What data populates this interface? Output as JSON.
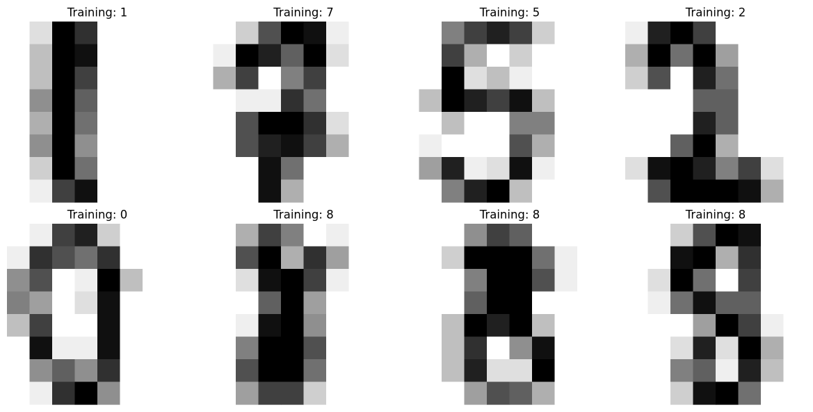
{
  "chart_data": [
    {
      "type": "heatmap",
      "title": "Training: 1",
      "colormap": "gray_r",
      "vmin": 0,
      "vmax": 16,
      "grid": false,
      "axes": "off",
      "values": [
        [
          0,
          2,
          16,
          13,
          0,
          0,
          0,
          0
        ],
        [
          0,
          4,
          16,
          15,
          0,
          0,
          0,
          0
        ],
        [
          0,
          4,
          16,
          12,
          0,
          0,
          0,
          0
        ],
        [
          0,
          7,
          16,
          10,
          0,
          0,
          0,
          0
        ],
        [
          0,
          5,
          16,
          9,
          0,
          0,
          0,
          0
        ],
        [
          0,
          7,
          16,
          7,
          0,
          0,
          0,
          0
        ],
        [
          0,
          3,
          16,
          9,
          0,
          0,
          0,
          0
        ],
        [
          0,
          1,
          12,
          15,
          0,
          0,
          0,
          0
        ]
      ]
    },
    {
      "type": "heatmap",
      "title": "Training: 7",
      "colormap": "gray_r",
      "vmin": 0,
      "vmax": 16,
      "grid": false,
      "axes": "off",
      "values": [
        [
          0,
          3,
          11,
          16,
          15,
          1,
          0,
          0
        ],
        [
          1,
          16,
          14,
          10,
          16,
          2,
          0,
          0
        ],
        [
          5,
          12,
          0,
          8,
          12,
          0,
          0,
          0
        ],
        [
          0,
          1,
          1,
          13,
          9,
          0,
          0,
          0
        ],
        [
          0,
          11,
          16,
          16,
          13,
          2,
          0,
          0
        ],
        [
          0,
          11,
          14,
          15,
          12,
          5,
          0,
          0
        ],
        [
          0,
          0,
          15,
          9,
          0,
          0,
          0,
          0
        ],
        [
          0,
          0,
          15,
          5,
          0,
          0,
          0,
          0
        ]
      ]
    },
    {
      "type": "heatmap",
      "title": "Training: 5",
      "colormap": "gray_r",
      "vmin": 0,
      "vmax": 16,
      "grid": false,
      "axes": "off",
      "values": [
        [
          0,
          8,
          12,
          14,
          12,
          3,
          0,
          0
        ],
        [
          0,
          12,
          5,
          0,
          3,
          0,
          0,
          0
        ],
        [
          0,
          16,
          2,
          4,
          1,
          0,
          0,
          0
        ],
        [
          4,
          16,
          14,
          12,
          15,
          4,
          0,
          0
        ],
        [
          0,
          4,
          0,
          0,
          8,
          8,
          0,
          0
        ],
        [
          1,
          0,
          0,
          0,
          11,
          5,
          0,
          0
        ],
        [
          6,
          14,
          1,
          2,
          15,
          1,
          0,
          0
        ],
        [
          0,
          8,
          14,
          16,
          4,
          0,
          0,
          0
        ]
      ]
    },
    {
      "type": "heatmap",
      "title": "Training: 2",
      "colormap": "gray_r",
      "vmin": 0,
      "vmax": 16,
      "grid": false,
      "axes": "off",
      "values": [
        [
          1,
          14,
          16,
          12,
          0,
          0,
          0,
          0
        ],
        [
          5,
          16,
          9,
          16,
          6,
          0,
          0,
          0
        ],
        [
          3,
          11,
          0,
          14,
          9,
          0,
          0,
          0
        ],
        [
          0,
          0,
          0,
          10,
          10,
          0,
          0,
          0
        ],
        [
          0,
          0,
          0,
          14,
          10,
          0,
          0,
          0
        ],
        [
          0,
          0,
          10,
          16,
          5,
          0,
          0,
          0
        ],
        [
          2,
          15,
          16,
          14,
          8,
          12,
          2,
          0
        ],
        [
          0,
          11,
          16,
          16,
          16,
          15,
          5,
          0
        ]
      ]
    },
    {
      "type": "heatmap",
      "title": "Training: 0",
      "colormap": "gray_r",
      "vmin": 0,
      "vmax": 16,
      "grid": false,
      "axes": "off",
      "values": [
        [
          0,
          1,
          12,
          14,
          3,
          0,
          0,
          0
        ],
        [
          1,
          13,
          11,
          9,
          13,
          0,
          0,
          0
        ],
        [
          7,
          11,
          0,
          1,
          16,
          4,
          0,
          0
        ],
        [
          8,
          6,
          0,
          2,
          15,
          0,
          0,
          0
        ],
        [
          4,
          12,
          0,
          0,
          15,
          0,
          0,
          0
        ],
        [
          0,
          15,
          1,
          1,
          15,
          0,
          0,
          0
        ],
        [
          0,
          7,
          10,
          7,
          13,
          0,
          0,
          0
        ],
        [
          0,
          1,
          13,
          16,
          7,
          0,
          0,
          0
        ]
      ]
    },
    {
      "type": "heatmap",
      "title": "Training: 8",
      "colormap": "gray_r",
      "vmin": 0,
      "vmax": 16,
      "grid": false,
      "axes": "off",
      "values": [
        [
          0,
          5,
          12,
          8,
          0,
          1,
          0,
          0
        ],
        [
          0,
          11,
          16,
          5,
          13,
          6,
          0,
          0
        ],
        [
          0,
          2,
          15,
          16,
          12,
          1,
          0,
          0
        ],
        [
          0,
          0,
          10,
          16,
          6,
          0,
          0,
          0
        ],
        [
          0,
          1,
          15,
          16,
          7,
          0,
          0,
          0
        ],
        [
          0,
          8,
          16,
          16,
          11,
          0,
          0,
          0
        ],
        [
          0,
          11,
          16,
          16,
          9,
          0,
          0,
          0
        ],
        [
          0,
          6,
          12,
          12,
          3,
          0,
          0,
          0
        ]
      ]
    },
    {
      "type": "heatmap",
      "title": "Training: 8",
      "colormap": "gray_r",
      "vmin": 0,
      "vmax": 16,
      "grid": false,
      "axes": "off",
      "values": [
        [
          0,
          0,
          7,
          12,
          10,
          0,
          0,
          0
        ],
        [
          0,
          3,
          16,
          16,
          16,
          9,
          1,
          0
        ],
        [
          0,
          0,
          8,
          16,
          16,
          11,
          1,
          0
        ],
        [
          0,
          0,
          10,
          16,
          16,
          0,
          0,
          0
        ],
        [
          0,
          4,
          16,
          14,
          16,
          4,
          0,
          0
        ],
        [
          0,
          4,
          13,
          0,
          7,
          15,
          0,
          0
        ],
        [
          0,
          4,
          14,
          2,
          2,
          16,
          0,
          0
        ],
        [
          0,
          0,
          6,
          11,
          10,
          5,
          0,
          0
        ]
      ]
    },
    {
      "type": "heatmap",
      "title": "Training: 8",
      "colormap": "gray_r",
      "vmin": 0,
      "vmax": 16,
      "grid": false,
      "axes": "off",
      "values": [
        [
          0,
          0,
          3,
          11,
          16,
          15,
          0,
          0
        ],
        [
          0,
          0,
          15,
          16,
          5,
          13,
          0,
          0
        ],
        [
          0,
          2,
          16,
          9,
          0,
          12,
          0,
          0
        ],
        [
          0,
          1,
          9,
          15,
          10,
          10,
          0,
          0
        ],
        [
          0,
          0,
          0,
          6,
          16,
          12,
          1,
          0
        ],
        [
          0,
          0,
          2,
          14,
          2,
          16,
          5,
          0
        ],
        [
          0,
          0,
          8,
          10,
          1,
          14,
          4,
          0
        ],
        [
          0,
          0,
          3,
          15,
          16,
          9,
          0,
          0
        ]
      ]
    }
  ]
}
